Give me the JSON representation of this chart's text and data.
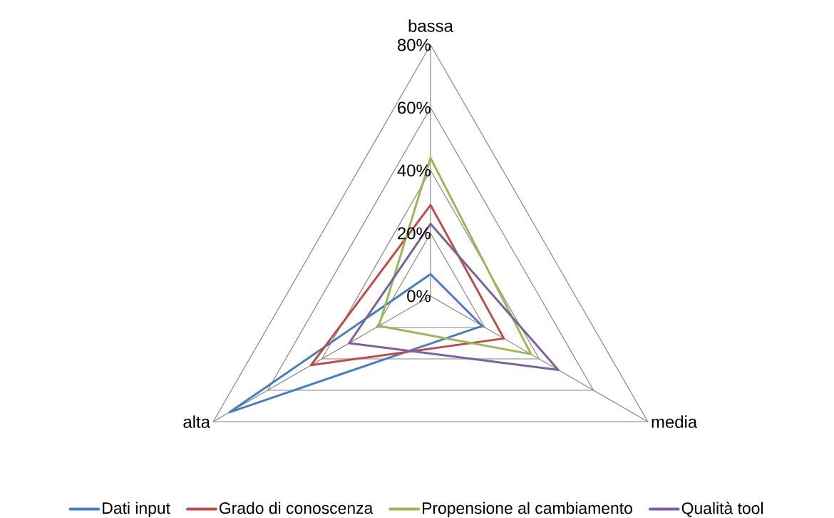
{
  "chart_data": {
    "type": "radar",
    "categories": [
      "bassa",
      "media",
      "alta"
    ],
    "series": [
      {
        "name": "Dati input",
        "color": "#4a7ebb",
        "values": [
          7,
          19,
          74
        ]
      },
      {
        "name": "Grado di conoscenza",
        "color": "#be4b48",
        "values": [
          29,
          27,
          44
        ]
      },
      {
        "name": "Propensione al cambiamento",
        "color": "#98b954",
        "values": [
          44,
          37,
          19
        ]
      },
      {
        "name": "Qualità tool",
        "color": "#7d60a0",
        "values": [
          23,
          47,
          30
        ]
      }
    ],
    "ylim": [
      0,
      80
    ],
    "yticks": [
      {
        "value": 0,
        "label": "0%"
      },
      {
        "value": 20,
        "label": "20%"
      },
      {
        "value": 40,
        "label": "40%"
      },
      {
        "value": 60,
        "label": "60%"
      },
      {
        "value": 80,
        "label": "80%"
      }
    ],
    "grid": true,
    "legend": "bottom",
    "marker": "none",
    "line_style": "solid"
  }
}
